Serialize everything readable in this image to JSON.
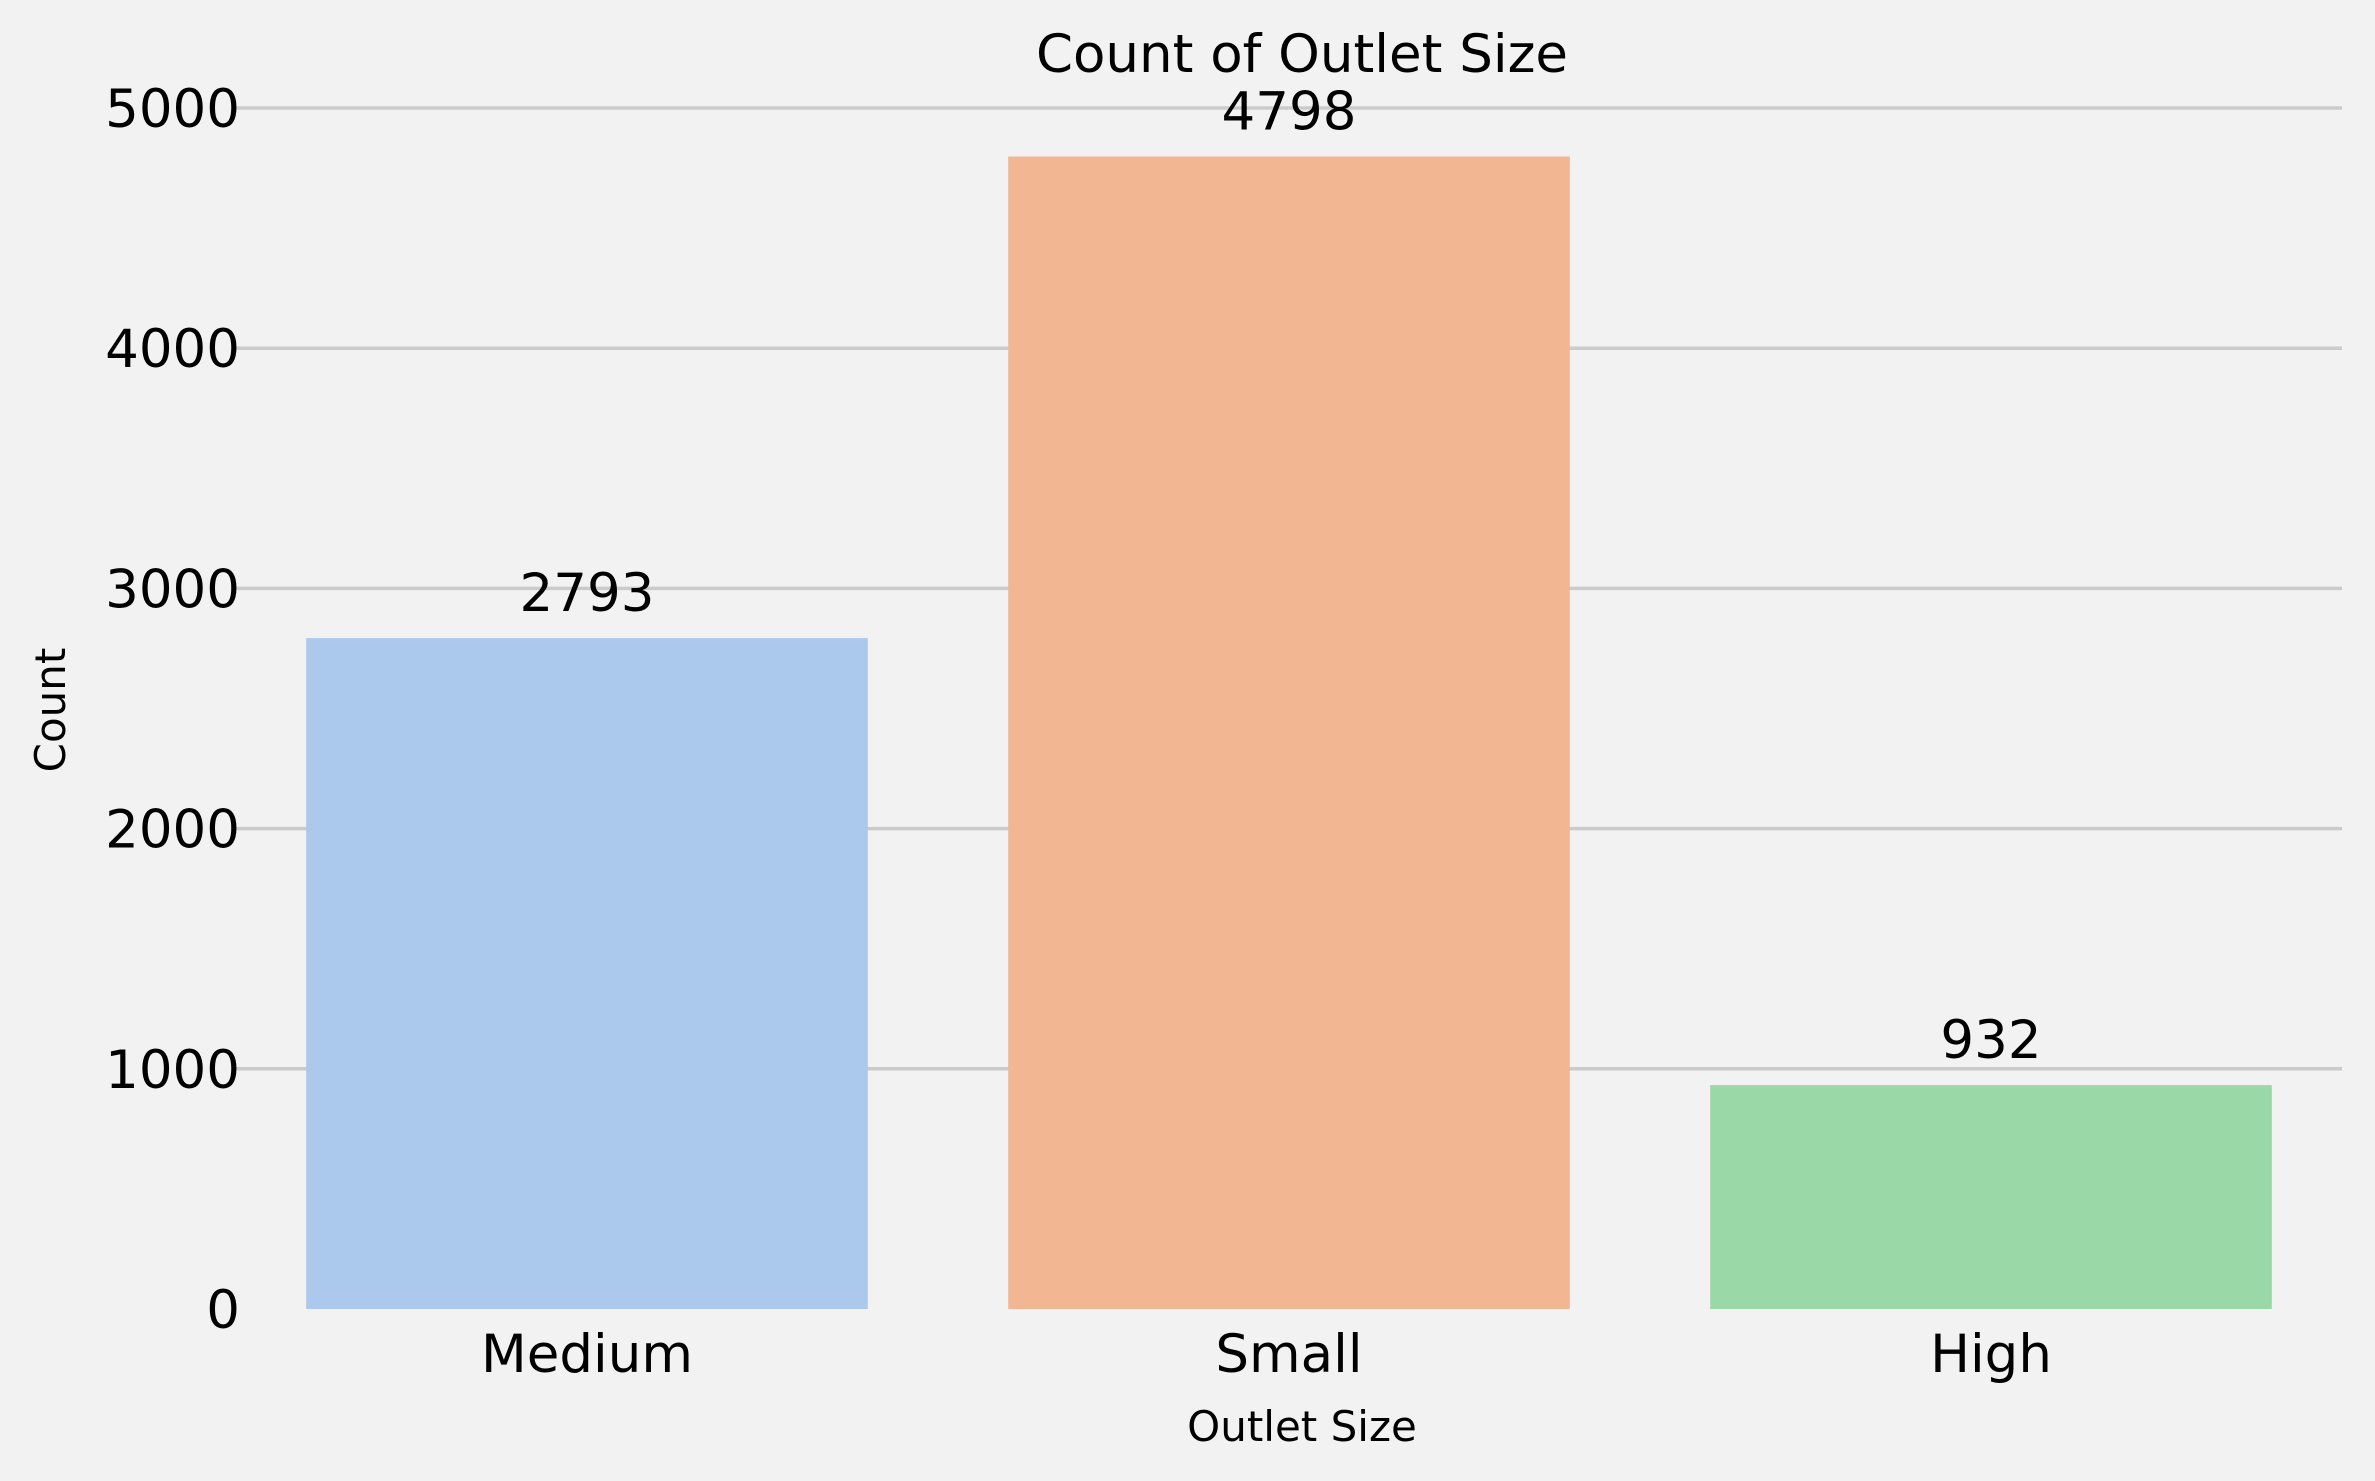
{
  "chart_data": {
    "type": "bar",
    "title": "Count of Outlet Size",
    "xlabel": "Outlet Size",
    "ylabel": "Count",
    "categories": [
      "Medium",
      "Small",
      "High"
    ],
    "values": [
      2793,
      4798,
      932
    ],
    "value_labels": [
      "2793",
      "4798",
      "932"
    ],
    "colors": [
      "#abc9ed",
      "#f2b792",
      "#9ad9a7"
    ],
    "ylim": [
      0,
      5000
    ],
    "yticks": [
      0,
      1000,
      2000,
      3000,
      4000,
      5000
    ],
    "ytick_labels": [
      "0",
      "1000",
      "2000",
      "3000",
      "4000",
      "5000"
    ],
    "grid": "horizontal",
    "legend": "none",
    "background": "#f2f2f2"
  }
}
